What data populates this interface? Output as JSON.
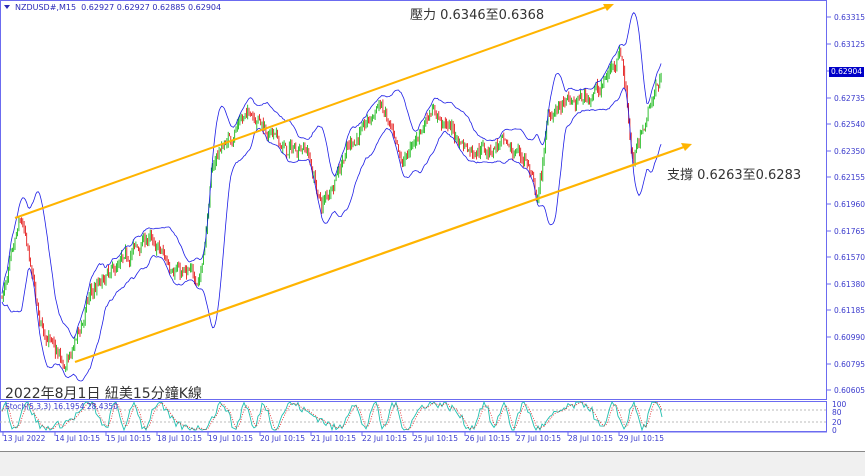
{
  "header": {
    "symbol": "NZDUSD#,M15",
    "ohlc": "0.62927 0.62927 0.62885 0.62904"
  },
  "title": "2022年8月1日 紐美15分鐘K線",
  "annotations": {
    "resistance": "壓力 0.6346至0.6368",
    "support": "支撐 0.6263至0.6283"
  },
  "current_price": "0.62904",
  "colors": {
    "bull": "#00b000",
    "bear": "#e00000",
    "bands": "#1e1ee6",
    "channel": "#ffb400",
    "axis": "#6b6bf0",
    "stoch_main": "#20c0b0",
    "stoch_signal": "#e02020"
  },
  "chart_data": {
    "type": "candlestick",
    "price_ticks": [
      "0.63315",
      "0.63125",
      "0.62930",
      "0.62735",
      "0.62540",
      "0.62350",
      "0.62155",
      "0.61960",
      "0.61765",
      "0.61570",
      "0.61380",
      "0.61185",
      "0.60990",
      "0.60795",
      "0.60605"
    ],
    "ylim": [
      0.6059,
      0.6342
    ],
    "time_ticks": [
      "13 Jul 2022",
      "14 Jul 10:15",
      "15 Jul 10:15",
      "18 Jul 10:15",
      "19 Jul 10:15",
      "20 Jul 10:15",
      "21 Jul 10:15",
      "22 Jul 10:15",
      "25 Jul 10:15",
      "26 Jul 10:15",
      "27 Jul 10:15",
      "28 Jul 10:15",
      "29 Jul 10:15"
    ],
    "indicator": {
      "label": "Stoch(5,3,3) 16.1954 28.4350",
      "levels": [
        "100",
        "80",
        "20",
        "0"
      ]
    },
    "channel": {
      "upper_price_range": "0.6346-0.6368",
      "lower_price_range": "0.6263-0.6283"
    }
  }
}
